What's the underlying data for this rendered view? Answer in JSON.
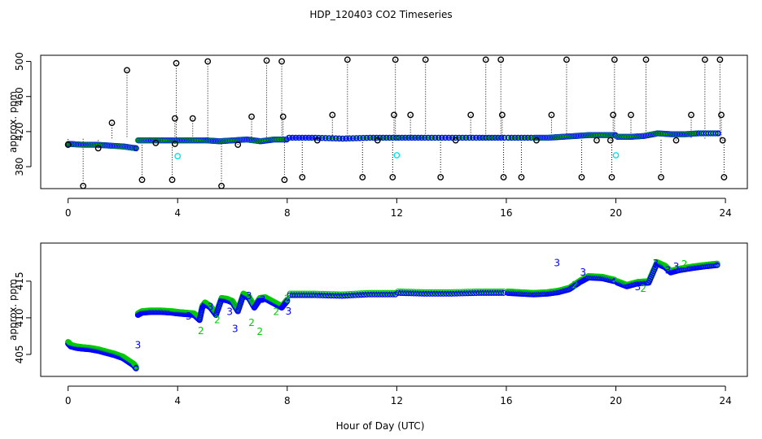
{
  "title": "HDP_120403  CO2 Timeseries",
  "xlabel": "Hour of Day (UTC)",
  "colors": {
    "blue": "#0000ff",
    "green": "#00cc00",
    "cyan": "#00e5e5",
    "black": "#000000"
  },
  "chart_data": [
    {
      "type": "scatter",
      "panel": "top",
      "ylabel": "approx. ppm",
      "xlim": [
        -1.0,
        24.8
      ],
      "ylim": [
        355,
        507
      ],
      "xticks": [
        0,
        4,
        8,
        12,
        16,
        20,
        24
      ],
      "yticks": [
        380,
        420,
        460,
        500
      ],
      "baseline_segments": [
        {
          "x": [
            0.0,
            0.5,
            1.0,
            1.5,
            2.0,
            2.45
          ],
          "y": [
            406,
            405,
            405,
            404,
            403,
            401
          ]
        },
        {
          "x": [
            2.55,
            3.0,
            3.5,
            4.0,
            4.5,
            5.0,
            5.5,
            6.0,
            6.5,
            7.0,
            7.5,
            7.95
          ],
          "y": [
            410,
            410,
            410,
            410,
            410,
            410,
            409,
            410,
            411,
            409,
            411,
            411
          ]
        },
        {
          "x": [
            8.05,
            9.0,
            10.0,
            11.0,
            11.95
          ],
          "y": [
            413,
            413,
            412,
            413,
            413
          ]
        },
        {
          "x": [
            12.05,
            13.0,
            14.0,
            15.0,
            15.9
          ],
          "y": [
            413,
            413,
            413,
            413,
            413
          ]
        },
        {
          "x": [
            16.05,
            17.0,
            17.5,
            18.0,
            18.5,
            19.0,
            19.5,
            19.95
          ],
          "y": [
            413,
            413,
            413,
            414,
            415,
            416,
            416,
            416
          ]
        },
        {
          "x": [
            20.05,
            20.5,
            21.0,
            21.5,
            22.0,
            22.5,
            23.0,
            23.7
          ],
          "y": [
            414,
            414,
            415,
            418,
            417,
            417,
            418,
            418
          ]
        }
      ],
      "spikes": [
        {
          "x": 0.0,
          "y": 405
        },
        {
          "x": 0.55,
          "y": 358
        },
        {
          "x": 1.1,
          "y": 401
        },
        {
          "x": 1.6,
          "y": 430
        },
        {
          "x": 2.15,
          "y": 490
        },
        {
          "x": 2.7,
          "y": 365
        },
        {
          "x": 3.2,
          "y": 407
        },
        {
          "x": 3.8,
          "y": 365
        },
        {
          "x": 3.9,
          "y": 406
        },
        {
          "x": 3.9,
          "y": 435
        },
        {
          "x": 3.95,
          "y": 498
        },
        {
          "x": 4.55,
          "y": 435
        },
        {
          "x": 5.1,
          "y": 500
        },
        {
          "x": 5.6,
          "y": 358
        },
        {
          "x": 6.2,
          "y": 405
        },
        {
          "x": 6.7,
          "y": 437
        },
        {
          "x": 7.25,
          "y": 501
        },
        {
          "x": 7.8,
          "y": 500
        },
        {
          "x": 7.85,
          "y": 437
        },
        {
          "x": 7.9,
          "y": 365
        },
        {
          "x": 8.55,
          "y": 368
        },
        {
          "x": 9.1,
          "y": 410
        },
        {
          "x": 9.65,
          "y": 439
        },
        {
          "x": 10.2,
          "y": 502
        },
        {
          "x": 10.75,
          "y": 368
        },
        {
          "x": 11.3,
          "y": 410
        },
        {
          "x": 11.85,
          "y": 368
        },
        {
          "x": 11.9,
          "y": 439
        },
        {
          "x": 11.95,
          "y": 502
        },
        {
          "x": 12.5,
          "y": 439
        },
        {
          "x": 13.05,
          "y": 502
        },
        {
          "x": 13.6,
          "y": 368
        },
        {
          "x": 14.15,
          "y": 410
        },
        {
          "x": 14.7,
          "y": 439
        },
        {
          "x": 15.25,
          "y": 502
        },
        {
          "x": 15.8,
          "y": 502
        },
        {
          "x": 15.85,
          "y": 439
        },
        {
          "x": 15.9,
          "y": 368
        },
        {
          "x": 16.55,
          "y": 368
        },
        {
          "x": 17.1,
          "y": 410
        },
        {
          "x": 17.65,
          "y": 439
        },
        {
          "x": 18.2,
          "y": 502
        },
        {
          "x": 18.75,
          "y": 368
        },
        {
          "x": 19.3,
          "y": 410
        },
        {
          "x": 19.85,
          "y": 368
        },
        {
          "x": 19.9,
          "y": 439
        },
        {
          "x": 19.95,
          "y": 502
        },
        {
          "x": 19.8,
          "y": 410
        },
        {
          "x": 20.55,
          "y": 439
        },
        {
          "x": 21.1,
          "y": 502
        },
        {
          "x": 21.65,
          "y": 368
        },
        {
          "x": 22.2,
          "y": 410
        },
        {
          "x": 22.75,
          "y": 439
        },
        {
          "x": 23.25,
          "y": 502
        },
        {
          "x": 23.8,
          "y": 502
        },
        {
          "x": 23.85,
          "y": 439
        },
        {
          "x": 23.9,
          "y": 410
        },
        {
          "x": 23.95,
          "y": 368
        }
      ],
      "cyan_points": [
        {
          "x": 4.0,
          "y": 392
        },
        {
          "x": 12.0,
          "y": 393
        },
        {
          "x": 20.0,
          "y": 393
        }
      ]
    },
    {
      "type": "scatter",
      "panel": "bottom",
      "ylabel": "approx. ppm",
      "xlim": [
        -1.0,
        24.8
      ],
      "ylim": [
        402.0,
        420.2
      ],
      "xticks": [
        0,
        4,
        8,
        12,
        16,
        20,
        24
      ],
      "yticks": [
        405,
        410,
        415
      ],
      "series": [
        {
          "x": [
            0.0,
            0.1,
            0.3,
            0.5,
            0.8,
            1.1,
            1.4,
            1.7,
            2.0,
            2.2,
            2.4,
            2.48
          ],
          "y": [
            406.6,
            406.2,
            406.0,
            405.9,
            405.8,
            405.6,
            405.3,
            405.0,
            404.6,
            404.1,
            403.6,
            403.2
          ]
        },
        {
          "x": [
            2.55,
            2.7,
            3.0,
            3.4,
            3.8,
            4.0,
            4.3,
            4.6,
            4.8,
            4.9,
            5.0,
            5.2,
            5.4,
            5.6,
            5.8,
            6.0,
            6.2,
            6.4,
            6.6,
            6.8,
            7.0,
            7.2,
            7.4,
            7.6,
            7.8,
            8.0
          ],
          "y": [
            410.5,
            410.8,
            410.9,
            410.9,
            410.8,
            410.7,
            410.6,
            410.5,
            409.8,
            411.5,
            412.0,
            411.5,
            410.5,
            412.6,
            412.5,
            412.2,
            411.0,
            413.2,
            412.8,
            411.5,
            412.6,
            412.7,
            412.3,
            411.9,
            411.5,
            412.4
          ]
        },
        {
          "x": [
            8.1,
            9.0,
            10.0,
            11.0,
            11.95
          ],
          "y": [
            413.2,
            413.2,
            413.1,
            413.3,
            413.3
          ]
        },
        {
          "x": [
            12.05,
            13.0,
            14.0,
            15.0,
            15.9
          ],
          "y": [
            413.5,
            413.4,
            413.4,
            413.5,
            413.5
          ]
        },
        {
          "x": [
            16.05,
            16.5,
            17.0,
            17.5,
            17.9,
            18.3,
            18.7,
            19.0,
            19.5,
            19.95
          ],
          "y": [
            413.5,
            413.4,
            413.3,
            413.4,
            413.6,
            414.0,
            415.0,
            415.6,
            415.5,
            415.1
          ]
        },
        {
          "x": [
            20.05,
            20.4,
            20.8,
            21.2,
            21.5,
            21.8,
            22.0,
            22.3,
            22.8,
            23.2,
            23.7
          ],
          "y": [
            414.9,
            414.4,
            414.8,
            414.9,
            417.5,
            417.0,
            416.3,
            416.6,
            416.9,
            417.1,
            417.3
          ]
        }
      ],
      "labels_3": [
        {
          "x": 2.55,
          "y": 406.3
        },
        {
          "x": 4.4,
          "y": 410.2
        },
        {
          "x": 5.2,
          "y": 411.5
        },
        {
          "x": 5.9,
          "y": 410.8
        },
        {
          "x": 6.1,
          "y": 408.5
        },
        {
          "x": 6.6,
          "y": 413.0
        },
        {
          "x": 7.1,
          "y": 412.5
        },
        {
          "x": 8.05,
          "y": 410.9
        },
        {
          "x": 17.85,
          "y": 417.5
        },
        {
          "x": 18.8,
          "y": 416.2
        },
        {
          "x": 21.45,
          "y": 417.4
        },
        {
          "x": 21.9,
          "y": 416.5
        },
        {
          "x": 22.2,
          "y": 417.0
        },
        {
          "x": 20.8,
          "y": 414.2
        }
      ],
      "labels_2": [
        {
          "x": 4.85,
          "y": 408.2
        },
        {
          "x": 5.45,
          "y": 409.7
        },
        {
          "x": 6.7,
          "y": 409.3
        },
        {
          "x": 7.0,
          "y": 408.1
        },
        {
          "x": 7.6,
          "y": 410.8
        },
        {
          "x": 8.0,
          "y": 412.6
        },
        {
          "x": 18.5,
          "y": 414.5
        },
        {
          "x": 21.0,
          "y": 414.0
        },
        {
          "x": 22.5,
          "y": 417.3
        }
      ]
    }
  ]
}
